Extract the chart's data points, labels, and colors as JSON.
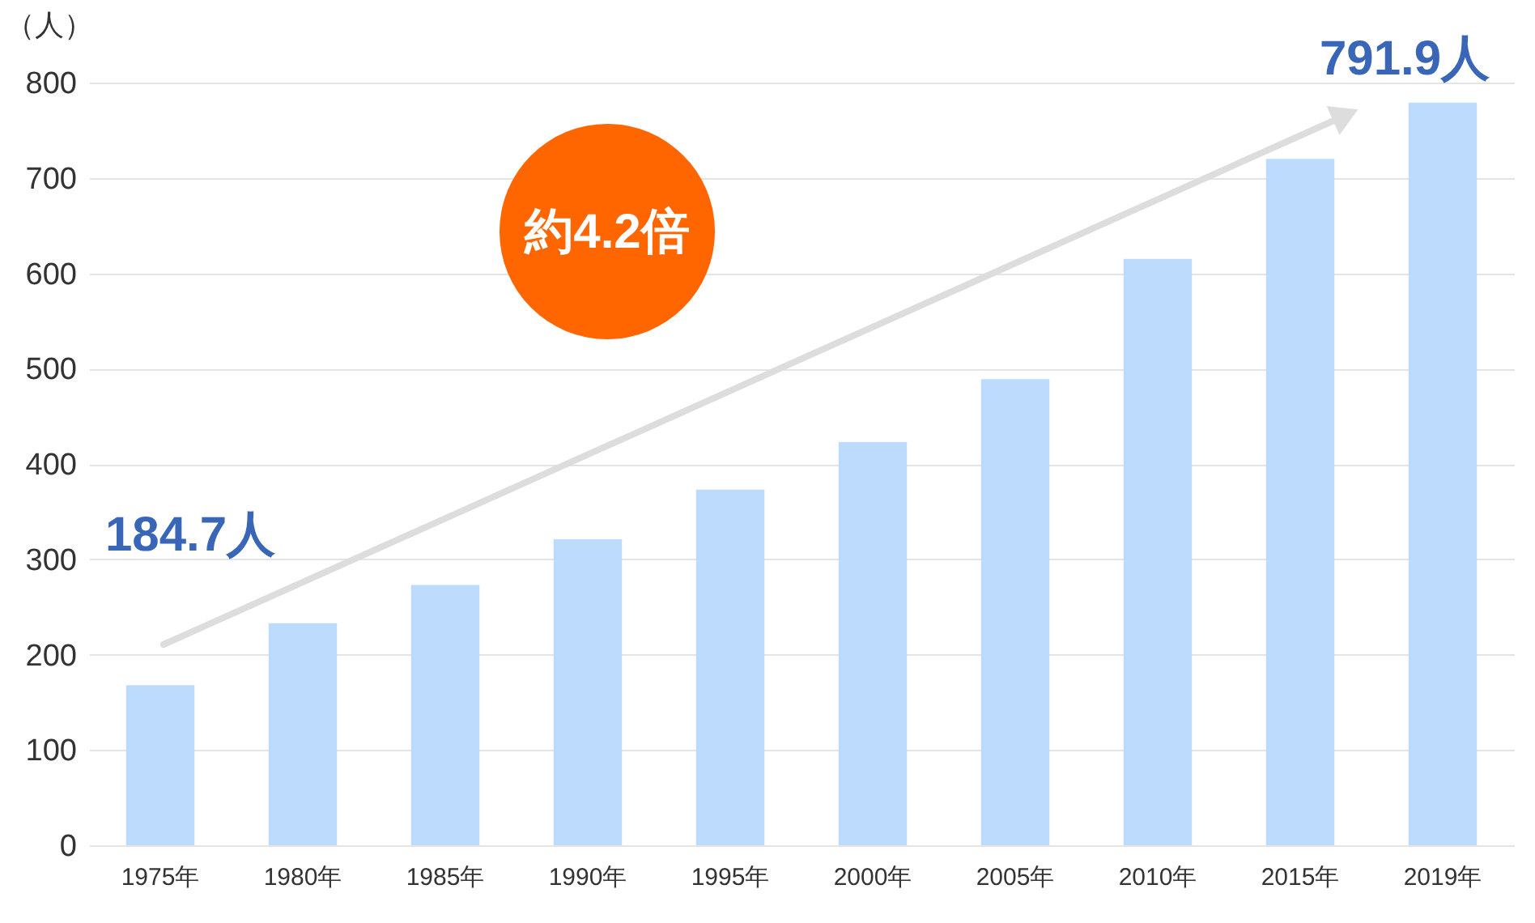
{
  "chart_data": {
    "type": "bar",
    "ylabel": "（人）",
    "categories": [
      "1975年",
      "1980年",
      "1985年",
      "1990年",
      "1995年",
      "2000年",
      "2005年",
      "2010年",
      "2015年",
      "2019年"
    ],
    "values": [
      168,
      233,
      273,
      321,
      373,
      423,
      489,
      615,
      720,
      779
    ],
    "color": "#bddbfc",
    "ylim": [
      0,
      800
    ],
    "yticks": [
      0,
      100,
      200,
      300,
      400,
      500,
      600,
      700,
      800
    ],
    "grid": "y",
    "annotations": [
      "184.7人",
      "791.9人",
      "約4.2倍"
    ]
  }
}
